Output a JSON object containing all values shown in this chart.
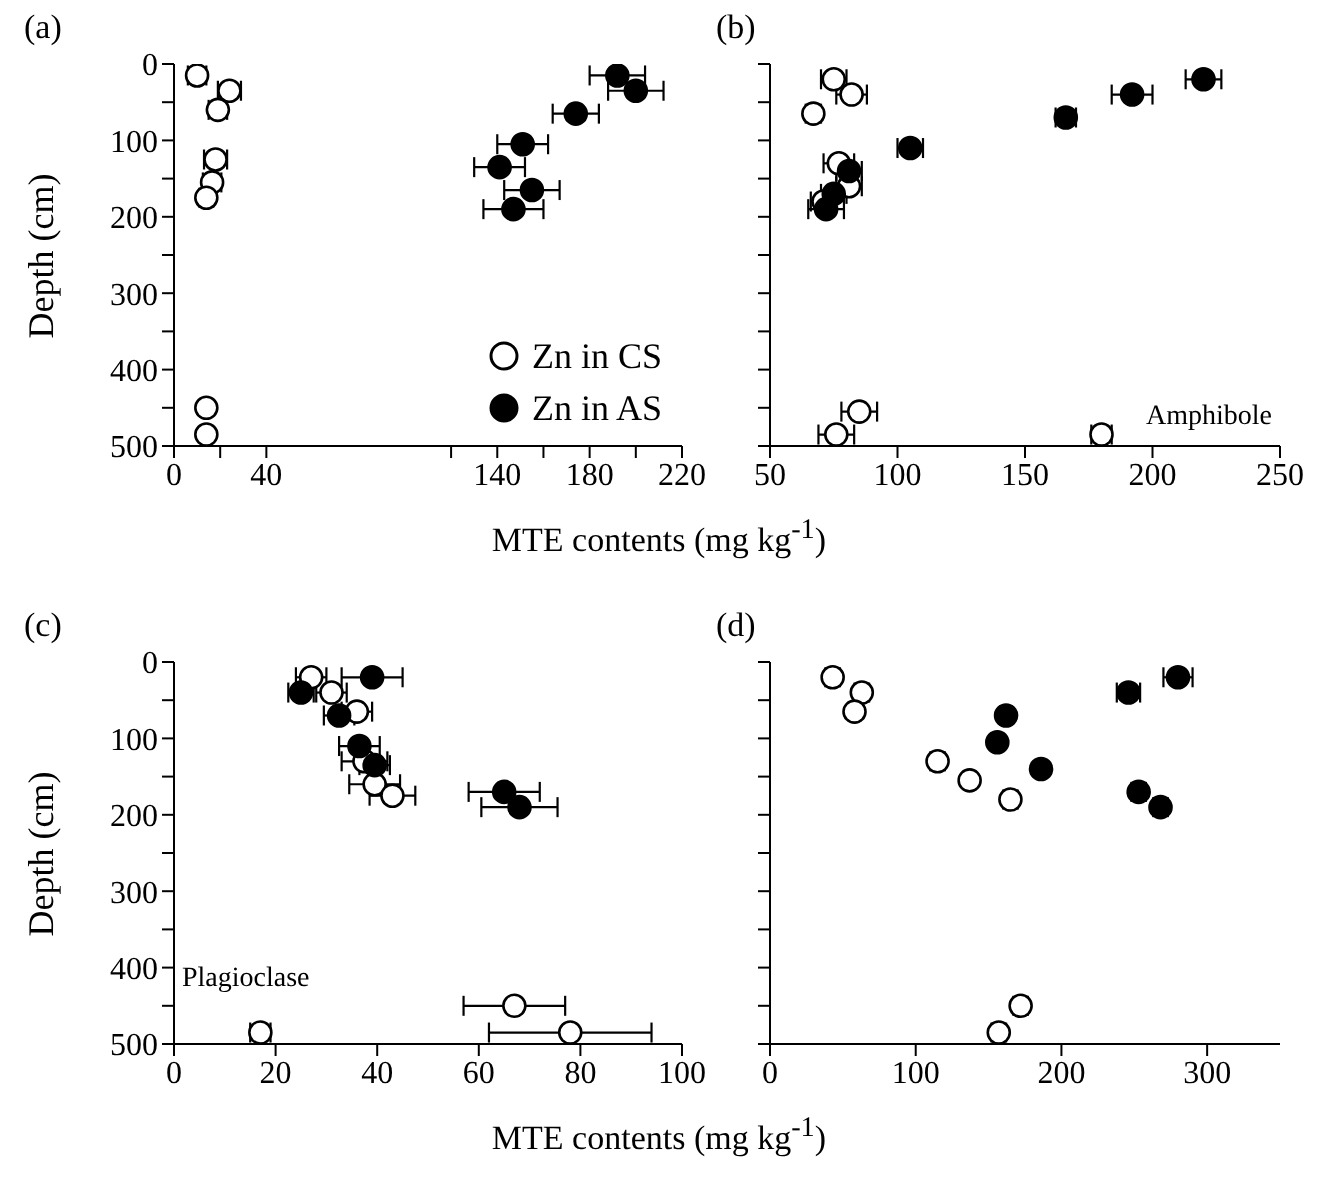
{
  "chart_data": [
    {
      "type": "scatter",
      "title": "(a)",
      "ylabel": "Depth (cm)",
      "xlabel": "MTE contents (mg kg$^{-1}$)",
      "marker": "circle",
      "legend": "bottom right",
      "xlim": [
        0,
        220
      ],
      "xticks": [
        0,
        {
          "value": 20,
          "label": null
        },
        40,
        {
          "value": 120,
          "label": null
        },
        140,
        {
          "value": 160,
          "label": null
        },
        180,
        {
          "value": 200,
          "label": null
        },
        220
      ],
      "ylim": [
        500,
        0
      ],
      "yticks": [
        0,
        {
          "value": 50,
          "label": null
        },
        100,
        {
          "value": 150,
          "label": null
        },
        200,
        {
          "value": 250,
          "label": null
        },
        300,
        {
          "value": 350,
          "label": null
        },
        400,
        {
          "value": 450,
          "label": null
        },
        500
      ],
      "series": [
        {
          "name": "Zn in CS",
          "color": "#ffffff",
          "x": [
            10,
            24,
            19,
            18,
            16.5,
            14,
            14,
            14
          ],
          "values": [
            15,
            35,
            60,
            125,
            155,
            175,
            450,
            485
          ],
          "xerrors": [
            4,
            5,
            4,
            5,
            4,
            3,
            2,
            2
          ]
        },
        {
          "name": "Zn in AS",
          "color": "#000000",
          "x": [
            192,
            200,
            174,
            151,
            141,
            155,
            147
          ],
          "values": [
            15,
            35,
            65,
            105,
            135,
            165,
            190
          ],
          "xerrors": [
            12,
            12,
            10,
            11,
            11,
            12,
            13
          ]
        }
      ]
    },
    {
      "type": "scatter",
      "title": "(b)",
      "annotations": [
        "Amphibole"
      ],
      "marker": "circle",
      "tick_labels": "x",
      "xlim": [
        50,
        250
      ],
      "xticks": [
        50,
        100,
        150,
        200,
        250
      ],
      "ylim": [
        500,
        0
      ],
      "yticks": [
        {
          "value": 0,
          "label": null
        },
        {
          "value": 50,
          "label": null
        },
        {
          "value": 100,
          "label": null
        },
        {
          "value": 150,
          "label": null
        },
        {
          "value": 200,
          "label": null
        },
        {
          "value": 250,
          "label": null
        },
        {
          "value": 300,
          "label": null
        },
        {
          "value": 350,
          "label": null
        },
        {
          "value": 400,
          "label": null
        },
        {
          "value": 450,
          "label": null
        },
        {
          "value": 500,
          "label": null
        }
      ],
      "series": [
        {
          "color": "#ffffff",
          "x": [
            75,
            82,
            67,
            77,
            81,
            71,
            85,
            76,
            180
          ],
          "values": [
            20,
            40,
            65,
            130,
            160,
            180,
            455,
            485,
            485
          ],
          "xerrors": [
            5,
            6,
            3,
            6,
            5,
            5,
            7,
            7,
            4
          ]
        },
        {
          "color": "#000000",
          "x": [
            220,
            192,
            166,
            105,
            81,
            75,
            72
          ],
          "values": [
            20,
            40,
            70,
            110,
            140,
            170,
            190
          ],
          "xerrors": [
            7,
            8,
            4,
            5,
            5,
            5,
            7
          ]
        }
      ]
    },
    {
      "type": "scatter",
      "title": "(c)",
      "ylabel": "Depth (cm)",
      "xlabel": "MTE contents (mg kg$^{-1}$)",
      "annotations": [
        "Plagioclase"
      ],
      "marker": "circle",
      "xlim": [
        0,
        100
      ],
      "xticks": [
        0,
        20,
        40,
        60,
        80,
        100
      ],
      "ylim": [
        500,
        0
      ],
      "yticks": [
        0,
        {
          "value": 50,
          "label": null
        },
        100,
        {
          "value": 150,
          "label": null
        },
        200,
        {
          "value": 250,
          "label": null
        },
        300,
        {
          "value": 350,
          "label": null
        },
        400,
        {
          "value": 450,
          "label": null
        },
        500
      ],
      "series": [
        {
          "color": "#ffffff",
          "x": [
            27,
            31,
            36,
            37.5,
            39.5,
            43,
            67,
            78,
            17
          ],
          "values": [
            20,
            40,
            65,
            130,
            160,
            175,
            450,
            485,
            485
          ],
          "xerrors": [
            3,
            3,
            3,
            4.5,
            5,
            4.5,
            10,
            16,
            2
          ]
        },
        {
          "color": "#000000",
          "x": [
            39,
            25,
            32.5,
            36.5,
            39.5,
            65,
            68
          ],
          "values": [
            20,
            40,
            70,
            110,
            135,
            170,
            190
          ],
          "xerrors": [
            6,
            2.5,
            3,
            4,
            3,
            7,
            7.5
          ]
        }
      ]
    },
    {
      "type": "scatter",
      "title": "(d)",
      "marker": "circle",
      "tick_labels": "x",
      "xlim": [
        0,
        350
      ],
      "xticks": [
        0,
        100,
        200,
        300
      ],
      "ylim": [
        500,
        0
      ],
      "yticks": [
        {
          "value": 0,
          "label": null
        },
        {
          "value": 50,
          "label": null
        },
        {
          "value": 100,
          "label": null
        },
        {
          "value": 150,
          "label": null
        },
        {
          "value": 200,
          "label": null
        },
        {
          "value": 250,
          "label": null
        },
        {
          "value": 300,
          "label": null
        },
        {
          "value": 350,
          "label": null
        },
        {
          "value": 400,
          "label": null
        },
        {
          "value": 450,
          "label": null
        },
        {
          "value": 500,
          "label": null
        }
      ],
      "series": [
        {
          "color": "#ffffff",
          "x": [
            43,
            63,
            58,
            115,
            137,
            165,
            172,
            157
          ],
          "values": [
            20,
            40,
            65,
            130,
            155,
            180,
            450,
            485
          ],
          "xerrors": [
            5,
            5,
            4,
            5,
            4,
            5,
            5,
            5
          ]
        },
        {
          "color": "#000000",
          "x": [
            280,
            246,
            162,
            156,
            186,
            253,
            268
          ],
          "values": [
            20,
            40,
            70,
            105,
            140,
            170,
            190
          ],
          "xerrors": [
            10,
            8,
            4,
            4,
            4,
            5,
            5
          ]
        }
      ]
    }
  ]
}
